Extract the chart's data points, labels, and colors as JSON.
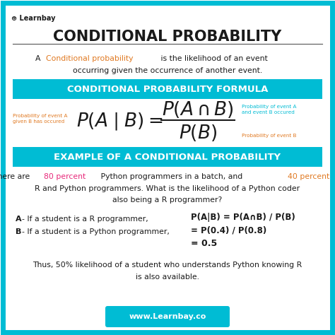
{
  "bg_color": "#b8eef8",
  "border_color": "#00bcd4",
  "white_bg": "#ffffff",
  "title": "CONDITIONAL PROBABILITY",
  "title_color": "#1a1a1a",
  "cyan_color": "#00bcd4",
  "orange_color": "#e07820",
  "pink_color": "#e8287a",
  "dark_color": "#1a1a1a",
  "formula_text": "CONDITIONAL PROBABILITY FORMULA",
  "example_text": "EXAMPLE OF A CONDITIONAL PROBABILITY",
  "website": "www.Learnbay.co"
}
